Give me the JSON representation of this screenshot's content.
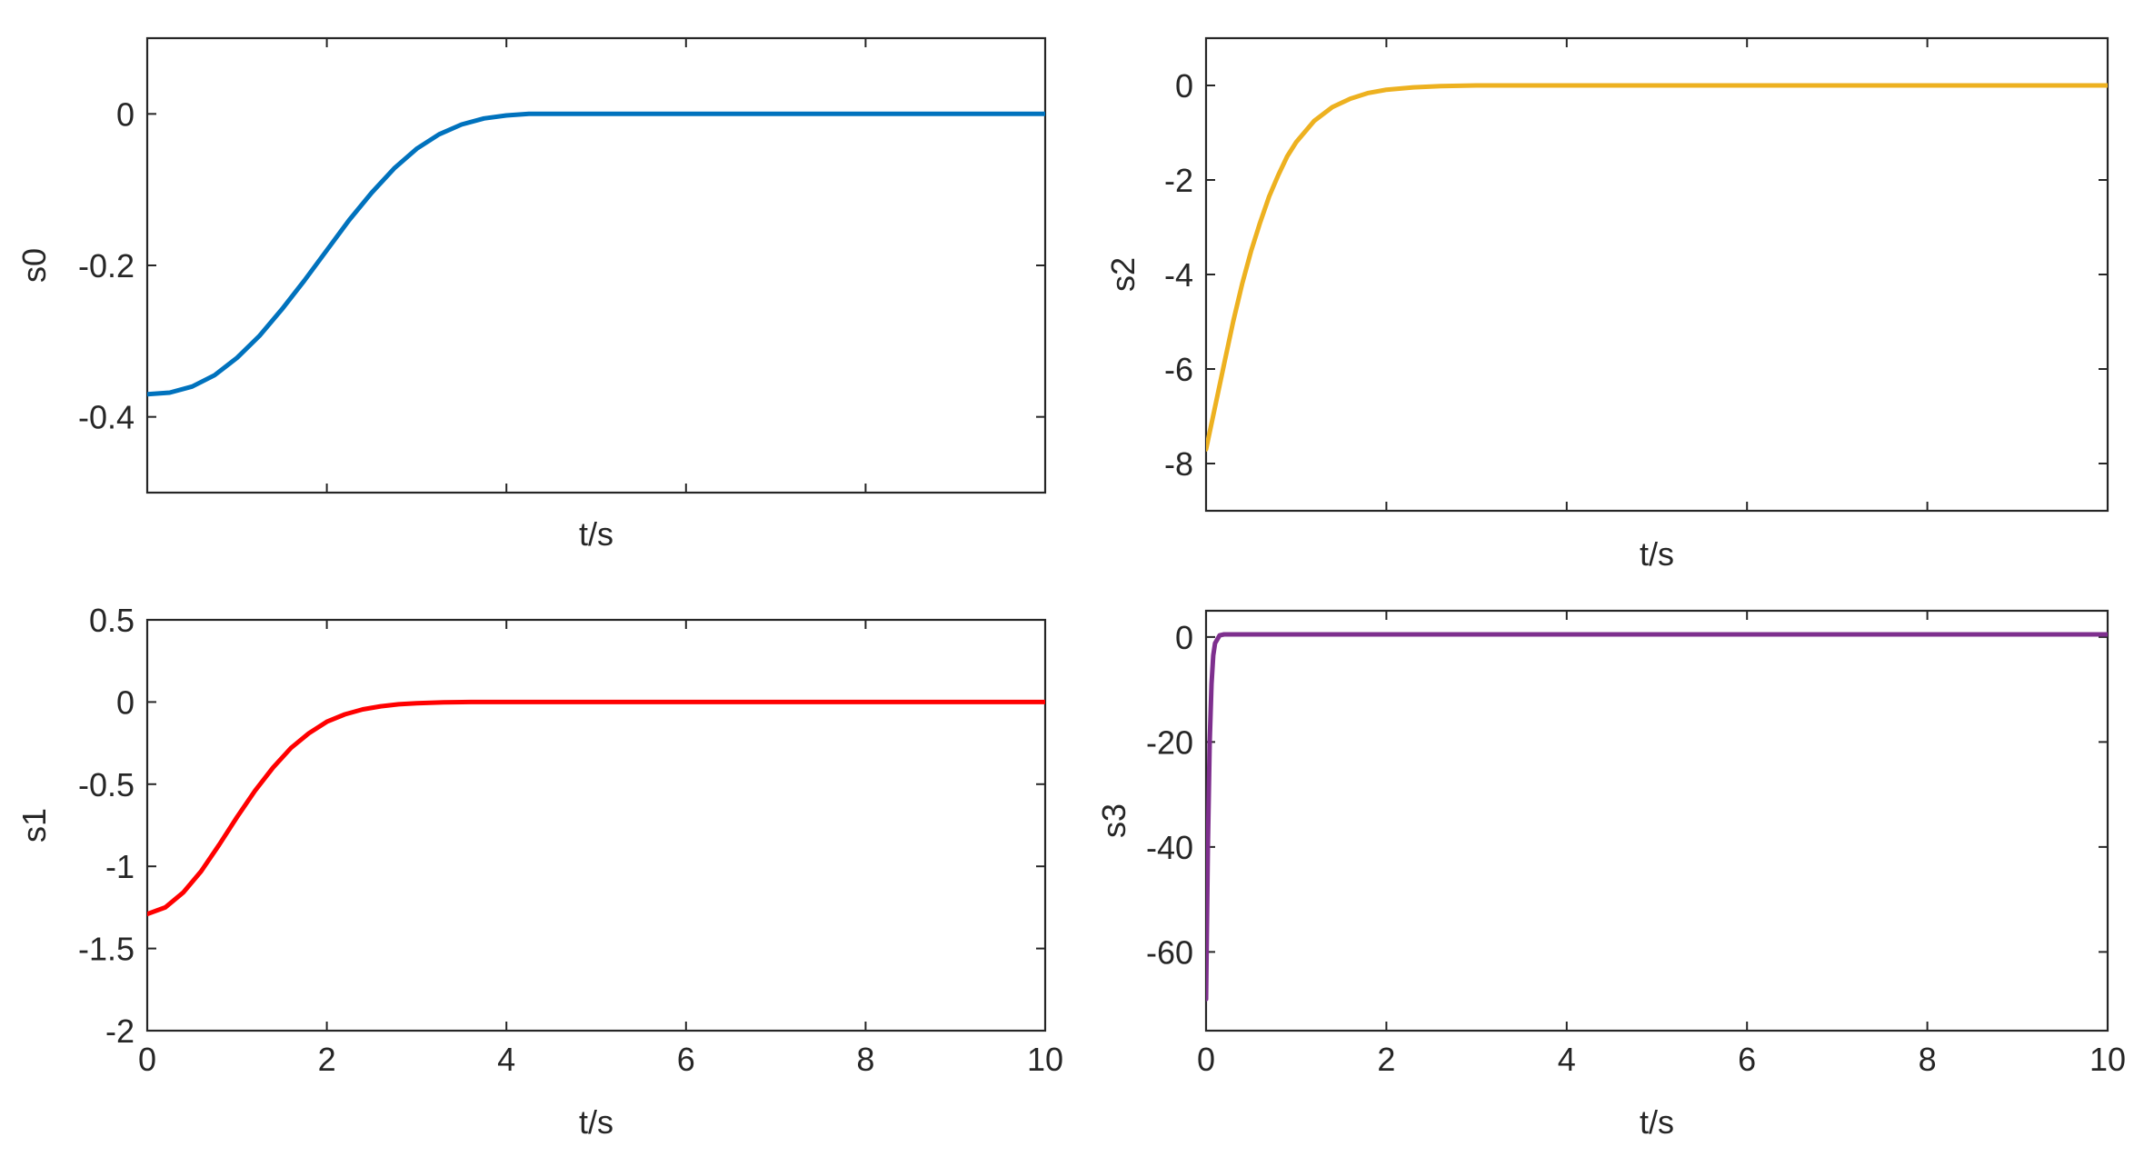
{
  "chart_data": [
    {
      "type": "line",
      "id": "s0",
      "xlabel": "t/s",
      "ylabel": "s0",
      "xlim": [
        0,
        10
      ],
      "ylim": [
        -0.5,
        0.1
      ],
      "xticks": [
        0,
        2,
        4,
        6,
        8,
        10
      ],
      "xtick_labels_shown": false,
      "yticks": [
        -0.4,
        -0.2,
        0
      ],
      "ytick_labels": [
        "-0.4",
        "-0.2",
        "0"
      ],
      "grid": false,
      "color": "#0072BD",
      "series": [
        {
          "x": [
            0,
            0.25,
            0.5,
            0.75,
            1,
            1.25,
            1.5,
            1.75,
            2,
            2.25,
            2.5,
            2.75,
            3,
            3.25,
            3.5,
            3.75,
            4,
            4.25,
            4.5,
            5,
            6,
            7,
            8,
            9,
            10
          ],
          "y": [
            -0.37,
            -0.368,
            -0.36,
            -0.345,
            -0.322,
            -0.293,
            -0.258,
            -0.22,
            -0.18,
            -0.14,
            -0.104,
            -0.072,
            -0.046,
            -0.027,
            -0.014,
            -0.006,
            -0.002,
            0,
            0,
            0,
            0,
            0,
            0,
            0,
            0
          ]
        }
      ]
    },
    {
      "type": "line",
      "id": "s2",
      "xlabel": "t/s",
      "ylabel": "s2",
      "xlim": [
        0,
        10
      ],
      "ylim": [
        -9,
        1
      ],
      "xticks": [
        0,
        2,
        4,
        6,
        8,
        10
      ],
      "xtick_labels_shown": false,
      "yticks": [
        -8,
        -6,
        -4,
        -2,
        0
      ],
      "ytick_labels": [
        "-8",
        "-6",
        "-4",
        "-2",
        "0"
      ],
      "grid": false,
      "color": "#EDB120",
      "series": [
        {
          "x": [
            0,
            0.1,
            0.2,
            0.3,
            0.4,
            0.5,
            0.6,
            0.7,
            0.8,
            0.9,
            1,
            1.2,
            1.4,
            1.6,
            1.8,
            2,
            2.3,
            2.6,
            3,
            4,
            5,
            6,
            7,
            8,
            9,
            10
          ],
          "y": [
            -7.7,
            -6.8,
            -5.9,
            -5.0,
            -4.2,
            -3.5,
            -2.9,
            -2.35,
            -1.9,
            -1.5,
            -1.2,
            -0.75,
            -0.46,
            -0.28,
            -0.16,
            -0.09,
            -0.04,
            -0.015,
            0,
            0,
            0,
            0,
            0,
            0,
            0,
            0
          ]
        }
      ]
    },
    {
      "type": "line",
      "id": "s1",
      "xlabel": "t/s",
      "ylabel": "s1",
      "xlim": [
        0,
        10
      ],
      "ylim": [
        -2,
        0.5
      ],
      "xticks": [
        0,
        2,
        4,
        6,
        8,
        10
      ],
      "xtick_labels": [
        "0",
        "2",
        "4",
        "6",
        "8",
        "10"
      ],
      "yticks": [
        -2,
        -1.5,
        -1,
        -0.5,
        0,
        0.5
      ],
      "ytick_labels": [
        "-2",
        "-1.5",
        "-1",
        "-0.5",
        "0",
        "0.5"
      ],
      "grid": false,
      "color": "#FF0000",
      "series": [
        {
          "x": [
            0,
            0.2,
            0.4,
            0.6,
            0.8,
            1,
            1.2,
            1.4,
            1.6,
            1.8,
            2,
            2.2,
            2.4,
            2.6,
            2.8,
            3,
            3.3,
            3.6,
            4,
            5,
            6,
            7,
            8,
            9,
            10
          ],
          "y": [
            -1.29,
            -1.25,
            -1.16,
            -1.03,
            -0.87,
            -0.7,
            -0.54,
            -0.4,
            -0.28,
            -0.19,
            -0.12,
            -0.075,
            -0.045,
            -0.026,
            -0.014,
            -0.007,
            -0.002,
            0,
            0,
            0,
            0,
            0,
            0,
            0,
            0
          ]
        }
      ]
    },
    {
      "type": "line",
      "id": "s3",
      "xlabel": "t/s",
      "ylabel": "s3",
      "xlim": [
        0,
        10
      ],
      "ylim": [
        -75,
        5
      ],
      "xticks": [
        0,
        2,
        4,
        6,
        8,
        10
      ],
      "xtick_labels": [
        "0",
        "2",
        "4",
        "6",
        "8",
        "10"
      ],
      "yticks": [
        -60,
        -40,
        -20,
        0
      ],
      "ytick_labels": [
        "-60",
        "-40",
        "-20",
        "0"
      ],
      "grid": false,
      "color": "#7E2F8E",
      "series": [
        {
          "x": [
            0,
            0.02,
            0.04,
            0.06,
            0.08,
            0.1,
            0.15,
            0.2,
            0.3,
            1,
            2,
            3,
            4,
            5,
            6,
            7,
            8,
            9,
            10
          ],
          "y": [
            -69,
            -40,
            -20,
            -9,
            -3.5,
            -1.2,
            0.3,
            0.5,
            0.5,
            0.5,
            0.5,
            0.5,
            0.5,
            0.5,
            0.5,
            0.5,
            0.5,
            0.5,
            0.5
          ]
        }
      ]
    }
  ]
}
